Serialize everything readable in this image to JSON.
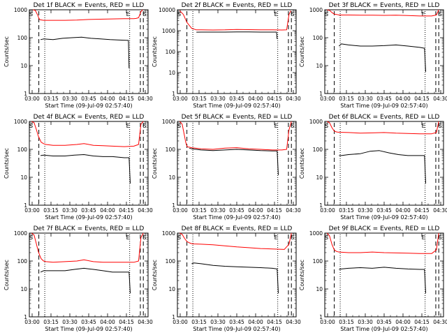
{
  "figure_title": "",
  "chart_data": [
    {
      "type": "line",
      "title": "Det 1f BLACK = Events, RED = LLD",
      "xlabel": "Start Time (09-Jul-09 02:57:40)",
      "ylabel": "Counts/sec",
      "yscale": "log",
      "ylim": [
        1,
        1000
      ],
      "xlim": [
        0,
        100
      ],
      "x_tick_labels": [
        "03:00",
        "03:15",
        "03:30",
        "03:45",
        "04:00",
        "04:15",
        "04:30"
      ],
      "y_tick_labels": [
        "1",
        "10",
        "100",
        "1000"
      ],
      "markers": [
        "S",
        "E",
        "S"
      ],
      "series": [
        {
          "name": "Events",
          "color": "#000000",
          "x": [
            9.5,
            12,
            20,
            28,
            36,
            44,
            52,
            60,
            68,
            76,
            83.5,
            84
          ],
          "y": [
            85,
            90,
            85,
            95,
            100,
            105,
            95,
            90,
            85,
            82,
            80,
            8
          ]
        },
        {
          "name": "LLD",
          "color": "#ff0000",
          "x": [
            3,
            5,
            7,
            8,
            8.8,
            12,
            20,
            30,
            40,
            50,
            60,
            70,
            80,
            88,
            90,
            92,
            94,
            95.5
          ],
          "y": [
            1000,
            950,
            650,
            500,
            440,
            420,
            420,
            420,
            430,
            450,
            460,
            470,
            480,
            480,
            490,
            520,
            850,
            1000
          ]
        }
      ]
    },
    {
      "type": "line",
      "title": "Det 2f BLACK = Events, RED = LLD",
      "xlabel": "Start Time (09-Jul-09 02:57:40)",
      "ylabel": "Counts/sec",
      "yscale": "log",
      "ylim": [
        1,
        10000
      ],
      "xlim": [
        0,
        100
      ],
      "x_tick_labels": [
        "03:00",
        "03:15",
        "03:30",
        "03:45",
        "04:00",
        "04:15",
        "04:30"
      ],
      "y_tick_labels": [
        "1",
        "10",
        "100",
        "1000",
        "10000"
      ],
      "markers": [
        "S",
        "E",
        "S"
      ],
      "series": [
        {
          "name": "Events",
          "color": "#000000",
          "x": [
            16,
            20,
            30,
            40,
            50,
            60,
            70,
            80,
            83.5,
            84
          ],
          "y": [
            850,
            860,
            860,
            860,
            880,
            870,
            860,
            860,
            860,
            400
          ]
        },
        {
          "name": "LLD",
          "color": "#ff0000",
          "x": [
            2,
            5,
            8,
            10,
            12,
            16,
            20,
            30,
            40,
            50,
            60,
            70,
            80,
            88,
            92,
            94,
            95.5
          ],
          "y": [
            9000,
            6000,
            2500,
            1800,
            1300,
            1100,
            1100,
            1080,
            1100,
            1150,
            1120,
            1100,
            1100,
            1080,
            1100,
            6000,
            9000
          ]
        }
      ]
    },
    {
      "type": "line",
      "title": "Det 3f BLACK = Events, RED = LLD",
      "xlabel": "Start Time (09-Jul-09 02:57:40)",
      "ylabel": "Counts/sec",
      "yscale": "log",
      "ylim": [
        1,
        1000
      ],
      "xlim": [
        0,
        100
      ],
      "x_tick_labels": [
        "03:00",
        "03:15",
        "03:30",
        "03:45",
        "04:00",
        "04:15",
        "04:30"
      ],
      "y_tick_labels": [
        "1",
        "10",
        "100",
        "1000"
      ],
      "markers": [
        "S",
        "E",
        "S"
      ],
      "series": [
        {
          "name": "Events",
          "color": "#000000",
          "x": [
            12,
            14,
            20,
            30,
            40,
            50,
            60,
            70,
            80,
            84,
            85
          ],
          "y": [
            50,
            60,
            55,
            50,
            50,
            52,
            55,
            50,
            45,
            42,
            6
          ]
        },
        {
          "name": "LLD",
          "color": "#ff0000",
          "x": [
            2,
            4,
            6,
            8,
            10,
            12,
            20,
            30,
            40,
            50,
            60,
            70,
            80,
            90,
            94,
            96
          ],
          "y": [
            1000,
            950,
            800,
            700,
            680,
            650,
            650,
            640,
            640,
            630,
            640,
            620,
            600,
            600,
            650,
            1000
          ]
        }
      ]
    },
    {
      "type": "line",
      "title": "Det 4f BLACK = Events, RED = LLD",
      "xlabel": "Start Time (09-Jul-09 02:57:40)",
      "ylabel": "Counts/sec",
      "yscale": "log",
      "ylim": [
        1,
        1000
      ],
      "xlim": [
        0,
        100
      ],
      "x_tick_labels": [
        "03:00",
        "03:15",
        "03:30",
        "03:45",
        "04:00",
        "04:15",
        "04:30"
      ],
      "y_tick_labels": [
        "1",
        "10",
        "100",
        "1000"
      ],
      "markers": [
        "S",
        "E",
        "S"
      ],
      "series": [
        {
          "name": "Events",
          "color": "#000000",
          "x": [
            9.5,
            12,
            20,
            30,
            38,
            46,
            54,
            62,
            70,
            80,
            84,
            85
          ],
          "y": [
            60,
            62,
            58,
            58,
            62,
            65,
            58,
            55,
            55,
            50,
            50,
            6
          ]
        },
        {
          "name": "LLD",
          "color": "#ff0000",
          "x": [
            2,
            4,
            6,
            7.5,
            9,
            10,
            12,
            14,
            20,
            30,
            40,
            46,
            54,
            62,
            70,
            80,
            88,
            92,
            94,
            96
          ],
          "y": [
            1000,
            900,
            500,
            300,
            220,
            180,
            160,
            150,
            140,
            140,
            150,
            160,
            140,
            135,
            130,
            125,
            130,
            150,
            800,
            1000
          ]
        }
      ]
    },
    {
      "type": "line",
      "title": "Det 5f BLACK = Events, RED = LLD",
      "xlabel": "Start Time (09-Jul-09 02:57:40)",
      "ylabel": "Counts/sec",
      "yscale": "log",
      "ylim": [
        1,
        1000
      ],
      "xlim": [
        0,
        100
      ],
      "x_tick_labels": [
        "03:00",
        "03:15",
        "03:30",
        "03:45",
        "04:00",
        "04:15",
        "04:30"
      ],
      "y_tick_labels": [
        "1",
        "10",
        "100",
        "1000"
      ],
      "markers": [
        "S",
        "E",
        "S"
      ],
      "series": [
        {
          "name": "Events",
          "color": "#000000",
          "x": [
            10,
            12,
            20,
            30,
            40,
            50,
            60,
            70,
            80,
            84,
            85
          ],
          "y": [
            110,
            105,
            95,
            90,
            95,
            100,
            95,
            90,
            88,
            88,
            12
          ]
        },
        {
          "name": "LLD",
          "color": "#ff0000",
          "x": [
            2,
            4,
            6,
            7,
            8,
            9,
            10,
            12,
            20,
            30,
            40,
            50,
            60,
            70,
            80,
            88,
            92,
            94,
            96
          ],
          "y": [
            1000,
            800,
            300,
            180,
            130,
            120,
            120,
            115,
            105,
            100,
            110,
            115,
            105,
            100,
            95,
            95,
            100,
            500,
            1000
          ]
        }
      ]
    },
    {
      "type": "line",
      "title": "Det 6f BLACK = Events, RED = LLD",
      "xlabel": "Start Time (09-Jul-09 02:57:40)",
      "ylabel": "Counts/sec",
      "yscale": "log",
      "ylim": [
        1,
        1000
      ],
      "xlim": [
        0,
        100
      ],
      "x_tick_labels": [
        "03:00",
        "03:15",
        "03:30",
        "03:45",
        "04:00",
        "04:15",
        "04:30"
      ],
      "y_tick_labels": [
        "1",
        "10",
        "100",
        "1000"
      ],
      "markers": [
        "S",
        "E",
        "S"
      ],
      "series": [
        {
          "name": "Events",
          "color": "#000000",
          "x": [
            12,
            14,
            20,
            30,
            38,
            46,
            54,
            62,
            70,
            80,
            84,
            85
          ],
          "y": [
            60,
            60,
            65,
            70,
            85,
            90,
            75,
            65,
            60,
            60,
            60,
            6
          ]
        },
        {
          "name": "LLD",
          "color": "#ff0000",
          "x": [
            2,
            4,
            6,
            8,
            10,
            12,
            20,
            30,
            40,
            50,
            60,
            70,
            80,
            90,
            94,
            96
          ],
          "y": [
            1000,
            900,
            600,
            450,
            420,
            410,
            400,
            380,
            390,
            400,
            380,
            370,
            360,
            360,
            400,
            1000
          ]
        }
      ]
    },
    {
      "type": "line",
      "title": "Det 7f BLACK = Events, RED = LLD",
      "xlabel": "Start Time (09-Jul-09 02:57:40)",
      "ylabel": "Counts/sec",
      "yscale": "log",
      "ylim": [
        1,
        1000
      ],
      "xlim": [
        0,
        100
      ],
      "x_tick_labels": [
        "03:00",
        "03:15",
        "03:30",
        "03:45",
        "04:00",
        "04:15",
        "04:30"
      ],
      "y_tick_labels": [
        "1",
        "10",
        "100",
        "1000"
      ],
      "markers": [
        "S",
        "E",
        "S"
      ],
      "series": [
        {
          "name": "Events",
          "color": "#000000",
          "x": [
            9.5,
            12,
            20,
            30,
            38,
            46,
            54,
            62,
            70,
            80,
            84,
            85
          ],
          "y": [
            40,
            45,
            45,
            45,
            50,
            55,
            50,
            45,
            40,
            40,
            40,
            7
          ]
        },
        {
          "name": "LLD",
          "color": "#ff0000",
          "x": [
            2,
            4,
            6,
            7.5,
            9,
            10,
            12,
            14,
            20,
            30,
            40,
            46,
            54,
            62,
            70,
            80,
            88,
            92,
            94,
            96
          ],
          "y": [
            1000,
            850,
            400,
            220,
            150,
            120,
            100,
            95,
            90,
            95,
            100,
            110,
            95,
            90,
            90,
            90,
            90,
            100,
            700,
            1000
          ]
        }
      ]
    },
    {
      "type": "line",
      "title": "Det 8f BLACK = Events, RED = LLD",
      "xlabel": "Start Time (09-Jul-09 02:57:40)",
      "ylabel": "Counts/sec",
      "yscale": "log",
      "ylim": [
        1,
        1000
      ],
      "xlim": [
        0,
        100
      ],
      "x_tick_labels": [
        "03:00",
        "03:15",
        "03:30",
        "03:45",
        "04:00",
        "04:15",
        "04:30"
      ],
      "y_tick_labels": [
        "1",
        "10",
        "100",
        "1000"
      ],
      "markers": [
        "S",
        "E",
        "S"
      ],
      "series": [
        {
          "name": "Events",
          "color": "#000000",
          "x": [
            12,
            14,
            20,
            30,
            40,
            50,
            60,
            70,
            80,
            84,
            85
          ],
          "y": [
            80,
            85,
            80,
            70,
            65,
            62,
            60,
            58,
            55,
            52,
            7
          ]
        },
        {
          "name": "LLD",
          "color": "#ff0000",
          "x": [
            2,
            4,
            6,
            8,
            10,
            12,
            14,
            20,
            30,
            40,
            50,
            60,
            70,
            80,
            90,
            94,
            96
          ],
          "y": [
            1000,
            900,
            650,
            500,
            450,
            420,
            410,
            400,
            380,
            350,
            320,
            300,
            280,
            270,
            260,
            400,
            1000
          ]
        }
      ]
    },
    {
      "type": "line",
      "title": "Det 9f BLACK = Events, RED = LLD",
      "xlabel": "Start Time (09-Jul-09 02:57:40)",
      "ylabel": "Counts/sec",
      "yscale": "log",
      "ylim": [
        1,
        1000
      ],
      "xlim": [
        0,
        100
      ],
      "x_tick_labels": [
        "03:00",
        "03:15",
        "03:30",
        "03:45",
        "04:00",
        "04:15",
        "04:30"
      ],
      "y_tick_labels": [
        "1",
        "10",
        "100",
        "1000"
      ],
      "markers": [
        "S",
        "E",
        "S"
      ],
      "series": [
        {
          "name": "Events",
          "color": "#000000",
          "x": [
            12,
            14,
            20,
            30,
            40,
            50,
            60,
            70,
            80,
            84,
            85
          ],
          "y": [
            50,
            52,
            55,
            58,
            55,
            60,
            55,
            52,
            50,
            50,
            7
          ]
        },
        {
          "name": "LLD",
          "color": "#ff0000",
          "x": [
            2,
            4,
            6,
            8,
            10,
            12,
            20,
            30,
            40,
            50,
            60,
            70,
            80,
            90,
            94,
            96
          ],
          "y": [
            1000,
            800,
            400,
            250,
            220,
            210,
            200,
            200,
            210,
            200,
            195,
            190,
            185,
            185,
            250,
            1000
          ]
        }
      ]
    }
  ]
}
